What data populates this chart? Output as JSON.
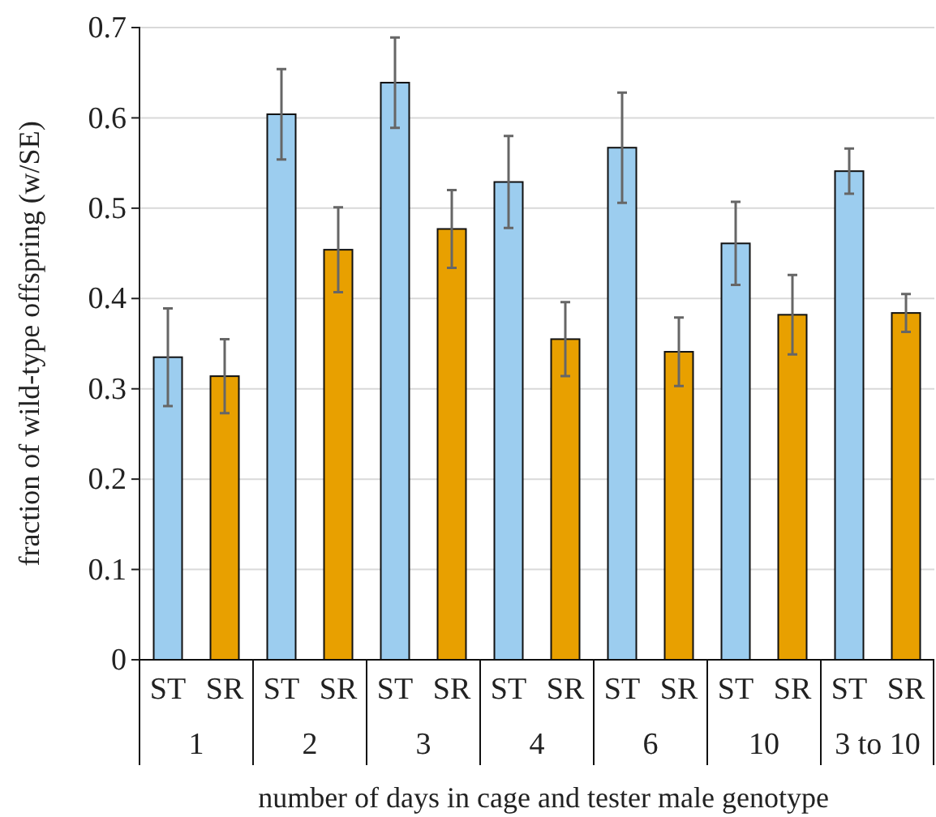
{
  "chart_data": {
    "type": "bar",
    "xlabel": "number of days in cage and tester male genotype",
    "ylabel": "fraction of wild-type offspring (w/SE)",
    "categories": [
      "1",
      "2",
      "3",
      "4",
      "6",
      "10",
      "3 to 10"
    ],
    "series": [
      {
        "name": "ST",
        "color": "#9ccdef",
        "values": [
          0.335,
          0.604,
          0.639,
          0.529,
          0.567,
          0.461,
          0.541
        ],
        "errors": [
          0.054,
          0.05,
          0.05,
          0.051,
          0.061,
          0.046,
          0.025
        ]
      },
      {
        "name": "SR",
        "color": "#e8a000",
        "values": [
          0.314,
          0.454,
          0.477,
          0.355,
          0.341,
          0.382,
          0.384
        ],
        "errors": [
          0.041,
          0.047,
          0.043,
          0.041,
          0.038,
          0.044,
          0.021
        ]
      }
    ],
    "ylim": [
      0,
      0.7
    ],
    "yticks": [
      0,
      0.1,
      0.2,
      0.3,
      0.4,
      0.5,
      0.6,
      0.7
    ],
    "grid": "y",
    "legend": false
  }
}
